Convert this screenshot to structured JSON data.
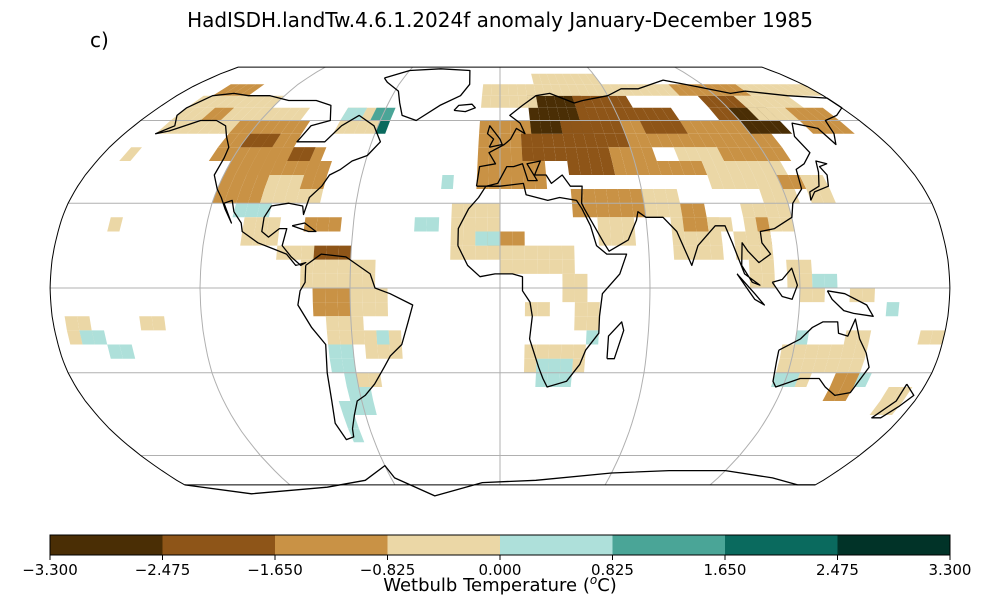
{
  "title": "HadISDH.landTw.4.6.1.2024f anomaly January-December 1985",
  "panel_label": "c)",
  "colorbar": {
    "label": "Wetbulb Temperature (",
    "label_sup": "o",
    "label_tail": "C)",
    "ticks": [
      "−3.300",
      "−2.475",
      "−1.650",
      "−0.825",
      "0.000",
      "0.825",
      "1.650",
      "2.475",
      "3.300"
    ],
    "colors": [
      "#4a2e05",
      "#8e5518",
      "#c99245",
      "#ebd7a6",
      "#aee0da",
      "#4aa597",
      "#0a6a5e",
      "#013328"
    ]
  },
  "map_data": {
    "projection": "robinson",
    "variable": "Wetbulb Temperature anomaly",
    "units": "°C",
    "value_range": [
      -3.3,
      3.3
    ],
    "cells_note_classes": {
      "0": "-3.300 to -2.475",
      "1": "-2.475 to -1.650",
      "2": "-1.650 to -0.825",
      "3": "-0.825 to 0.000",
      "4": "0.000 to 0.825",
      "5": "0.825 to 1.650",
      "6": "1.650 to 2.475",
      "7": "2.475 to 3.300"
    }
  }
}
